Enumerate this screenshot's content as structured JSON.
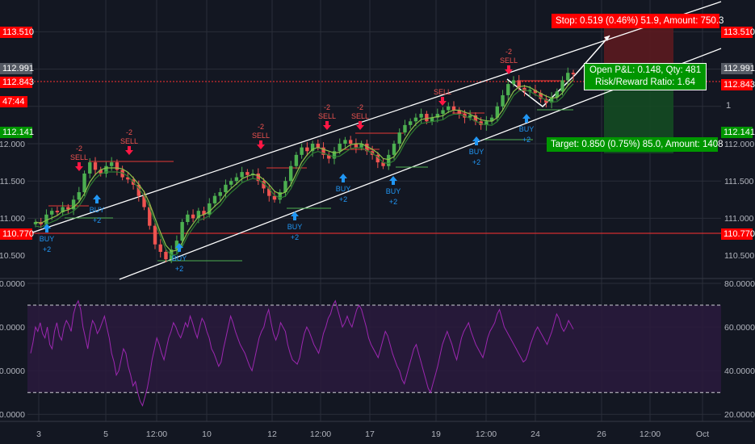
{
  "chart_data": [
    {
      "type": "candlestick",
      "panel": "price",
      "y_ticks": [
        "112.000",
        "111.500",
        "111.000",
        "110.500"
      ],
      "ylim": [
        110.3,
        113.8
      ],
      "x_ticks": [
        "3",
        "5",
        "12:00",
        "10",
        "12",
        "12:00",
        "17",
        "19",
        "12:00",
        "24",
        "26",
        "12:00",
        "Oct"
      ],
      "grid": true,
      "close_series": [
        110.95,
        110.92,
        111.05,
        111.1,
        111.08,
        111.15,
        111.12,
        111.25,
        111.35,
        111.6,
        111.75,
        111.65,
        111.6,
        111.7,
        111.75,
        111.65,
        111.55,
        111.52,
        111.45,
        111.3,
        111.15,
        110.9,
        110.65,
        110.55,
        110.45,
        110.58,
        110.7,
        110.95,
        111.05,
        111.0,
        111.1,
        111.05,
        111.2,
        111.3,
        111.35,
        111.45,
        111.5,
        111.55,
        111.62,
        111.58,
        111.6,
        111.5,
        111.4,
        111.3,
        111.25,
        111.35,
        111.5,
        111.7,
        111.85,
        111.95,
        111.9,
        112.0,
        111.95,
        111.85,
        111.8,
        111.9,
        112.0,
        112.05,
        112.0,
        111.95,
        112.0,
        111.9,
        111.85,
        111.75,
        111.7,
        111.85,
        112.0,
        112.15,
        112.25,
        112.3,
        112.35,
        112.4,
        112.3,
        112.35,
        112.4,
        112.45,
        112.5,
        112.45,
        112.4,
        112.35,
        112.38,
        112.3,
        112.25,
        112.3,
        112.35,
        112.5,
        112.65,
        112.8,
        112.85,
        112.75,
        112.7,
        112.72,
        112.68,
        112.6,
        112.55,
        112.62,
        112.7,
        112.85,
        112.95,
        112.93
      ]
    },
    {
      "type": "line",
      "panel": "oscillator",
      "y_ticks": [
        "80.0000",
        "60.0000",
        "40.0000",
        "20.0000"
      ],
      "ylim": [
        16,
        82
      ],
      "band": [
        30,
        70
      ],
      "values": [
        48,
        53,
        60,
        58,
        62,
        57,
        55,
        60,
        52,
        50,
        58,
        62,
        56,
        54,
        60,
        63,
        61,
        58,
        66,
        70,
        72,
        68,
        60,
        55,
        50,
        58,
        63,
        61,
        57,
        59,
        62,
        65,
        60,
        55,
        48,
        44,
        38,
        40,
        45,
        50,
        48,
        42,
        38,
        33,
        35,
        30,
        26,
        24,
        28,
        32,
        38,
        45,
        50,
        55,
        52,
        48,
        45,
        50,
        55,
        58,
        62,
        60,
        57,
        55,
        58,
        62,
        60,
        65,
        62,
        58,
        55,
        60,
        64,
        62,
        58,
        55,
        50,
        48,
        45,
        42,
        44,
        50,
        55,
        60,
        65,
        62,
        58,
        55,
        52,
        50,
        48,
        45,
        42,
        40,
        45,
        50,
        55,
        58,
        60,
        65,
        68,
        62,
        57,
        54,
        57,
        62,
        60,
        58,
        52,
        48,
        45,
        44,
        43,
        46,
        52,
        57,
        60,
        58,
        55,
        52,
        50,
        48,
        52,
        57,
        60,
        64,
        66,
        70,
        72,
        68,
        64,
        60,
        62,
        65,
        62,
        60,
        64,
        68,
        70,
        68,
        64,
        60,
        55,
        52,
        50,
        48,
        46,
        50,
        54,
        58,
        56,
        52,
        48,
        45,
        42,
        40,
        36,
        34,
        38,
        42,
        46,
        50,
        52,
        48,
        44,
        40,
        36,
        32,
        30,
        34,
        38,
        42,
        47,
        52,
        55,
        58,
        55,
        52,
        48,
        45,
        50,
        55,
        58,
        60,
        62,
        58,
        55,
        52,
        50,
        48,
        46,
        50,
        55,
        58,
        60,
        62,
        66,
        68,
        64,
        60,
        58,
        56,
        54,
        52,
        50,
        48,
        46,
        44,
        45,
        48,
        52,
        55,
        58,
        60,
        58,
        56,
        54,
        52,
        55,
        58,
        62,
        66,
        64,
        60,
        58,
        60,
        63,
        61,
        59
      ]
    }
  ],
  "price_labels": {
    "level_high": "113.510",
    "last_price": "112.991",
    "stop_price": "112.843",
    "countdown": "47:44",
    "target_price": "112.141",
    "level_low": "110.770",
    "hidden_tick": "1"
  },
  "position": {
    "stop_text": "Stop: 0.519 (0.46%) 51.9, Amount: 750.3",
    "pnl_text": "Open P&L: 0.148, Qty: 481",
    "rr_text": "Risk/Reward Ratio: 1.64",
    "target_text": "Target: 0.850 (0.75%) 85.0, Amount: 1408"
  },
  "signals": {
    "sell": [
      {
        "qty": "-2",
        "label": "SELL"
      },
      {
        "qty": "-2",
        "label": "SELL"
      },
      {
        "qty": "-2",
        "label": "SELL"
      },
      {
        "qty": "-2",
        "label": "SELL"
      },
      {
        "qty": "-2",
        "label": "SELL"
      },
      {
        "qty": "",
        "label": "SELL"
      },
      {
        "qty": "-2",
        "label": "SELL"
      }
    ],
    "buy": [
      {
        "qty": "+2",
        "label": "BUY"
      },
      {
        "qty": "+2",
        "label": "BUY"
      },
      {
        "qty": "+2",
        "label": "BUY"
      },
      {
        "qty": "+2",
        "label": "BUY"
      },
      {
        "qty": "+2",
        "label": "BUY"
      },
      {
        "qty": "+2",
        "label": "BUY"
      },
      {
        "qty": "+2",
        "label": "BUY"
      },
      {
        "qty": "+2",
        "label": "BUY"
      }
    ]
  },
  "colors": {
    "background": "#131722",
    "grid": "#2a2e39",
    "up": "#26a69a",
    "down": "#ef5350",
    "label_red": "#ff0000",
    "label_green": "#009600",
    "channel": "#ffffff",
    "ma": "#4caf50",
    "rsi": "#9c27b0",
    "rsi_band": "#2a1a3d",
    "buy": "#2196f3"
  }
}
